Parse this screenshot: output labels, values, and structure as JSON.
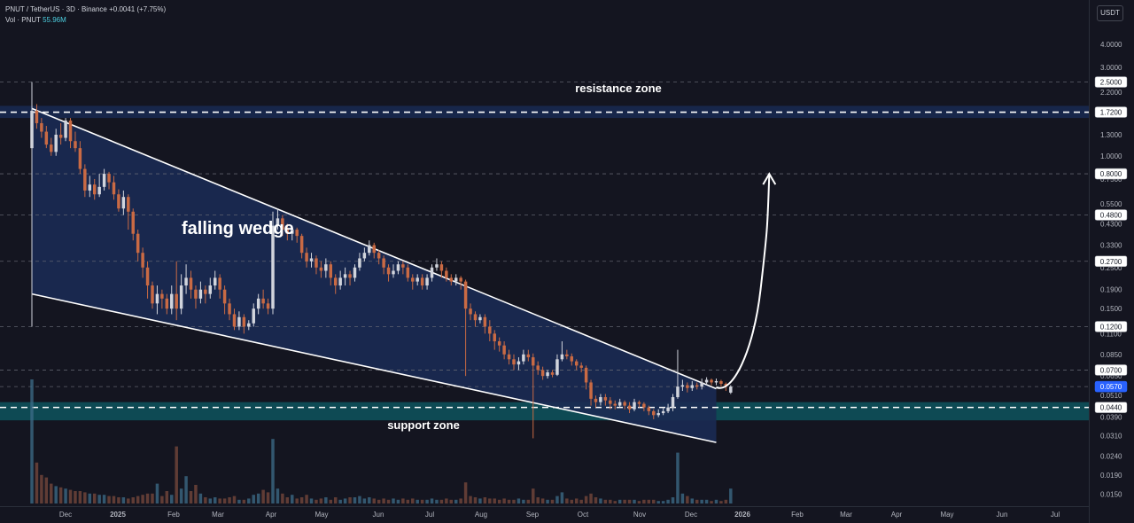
{
  "header": {
    "symbol_line": "PNUT / TetherUS · 3D · Binance",
    "change": "+0.0041 (+7.75%)",
    "vol_label": "Vol · PNUT",
    "vol_value": "55.96M",
    "currency": "USDT"
  },
  "chart_data": {
    "type": "candlestick",
    "symbol": "PNUT / TetherUS",
    "interval": "3D",
    "exchange": "Binance",
    "y_scale": "log",
    "ylim": [
      0.0135,
      6.2
    ],
    "x_ticks": [
      "Dec",
      "2025",
      "Feb",
      "Mar",
      "Apr",
      "May",
      "Jun",
      "Jul",
      "Aug",
      "Sep",
      "Oct",
      "Nov",
      "Dec",
      "2026",
      "Feb",
      "Mar",
      "Apr",
      "May",
      "Jun",
      "Jul"
    ],
    "y_ticks": [
      "4.0000",
      "3.0000",
      "2.2000",
      "1.3000",
      "1.0000",
      "0.7500",
      "0.5500",
      "0.4300",
      "0.3300",
      "0.2500",
      "0.1900",
      "0.1500",
      "0.1100",
      "0.0850",
      "0.0650",
      "0.0510",
      "0.0390",
      "0.0310",
      "0.0240",
      "0.0190",
      "0.0150"
    ],
    "price_labels": [
      "2.5000",
      "1.7200",
      "0.8000",
      "0.4800",
      "0.2700",
      "0.1200",
      "0.0700",
      "0.0570",
      "0.0440"
    ],
    "current_price": "0.0570",
    "annotations": {
      "resistance": "resistance zone",
      "pattern": "falling wedge",
      "support": "support zone"
    },
    "candles": [
      [
        1.1,
        1.75,
        2.5,
        0.12
      ],
      [
        1.75,
        1.5,
        1.9,
        1.4
      ],
      [
        1.5,
        1.35,
        1.6,
        1.25
      ],
      [
        1.35,
        1.15,
        1.45,
        1.1
      ],
      [
        1.15,
        1.05,
        1.25,
        1.0
      ],
      [
        1.05,
        1.3,
        1.4,
        1.0
      ],
      [
        1.3,
        1.25,
        1.5,
        1.15
      ],
      [
        1.25,
        1.55,
        1.6,
        1.2
      ],
      [
        1.55,
        1.2,
        1.6,
        1.1
      ],
      [
        1.2,
        1.1,
        1.35,
        1.05
      ],
      [
        1.1,
        0.85,
        1.2,
        0.8
      ],
      [
        0.85,
        0.65,
        0.9,
        0.6
      ],
      [
        0.65,
        0.7,
        0.78,
        0.6
      ],
      [
        0.7,
        0.62,
        0.75,
        0.58
      ],
      [
        0.62,
        0.68,
        0.8,
        0.6
      ],
      [
        0.68,
        0.8,
        0.85,
        0.65
      ],
      [
        0.8,
        0.72,
        0.82,
        0.66
      ],
      [
        0.72,
        0.62,
        0.78,
        0.58
      ],
      [
        0.62,
        0.52,
        0.66,
        0.5
      ],
      [
        0.52,
        0.6,
        0.65,
        0.48
      ],
      [
        0.6,
        0.5,
        0.62,
        0.4
      ],
      [
        0.5,
        0.38,
        0.52,
        0.35
      ],
      [
        0.38,
        0.3,
        0.4,
        0.27
      ],
      [
        0.3,
        0.25,
        0.32,
        0.22
      ],
      [
        0.25,
        0.2,
        0.27,
        0.17
      ],
      [
        0.2,
        0.16,
        0.21,
        0.15
      ],
      [
        0.16,
        0.18,
        0.2,
        0.14
      ],
      [
        0.18,
        0.17,
        0.19,
        0.15
      ],
      [
        0.17,
        0.15,
        0.18,
        0.14
      ],
      [
        0.15,
        0.18,
        0.2,
        0.14
      ],
      [
        0.18,
        0.15,
        0.27,
        0.13
      ],
      [
        0.15,
        0.2,
        0.23,
        0.14
      ],
      [
        0.2,
        0.22,
        0.26,
        0.18
      ],
      [
        0.22,
        0.19,
        0.24,
        0.17
      ],
      [
        0.19,
        0.17,
        0.2,
        0.15
      ],
      [
        0.17,
        0.19,
        0.21,
        0.16
      ],
      [
        0.19,
        0.18,
        0.2,
        0.16
      ],
      [
        0.18,
        0.2,
        0.22,
        0.17
      ],
      [
        0.2,
        0.22,
        0.24,
        0.19
      ],
      [
        0.22,
        0.19,
        0.23,
        0.17
      ],
      [
        0.19,
        0.16,
        0.2,
        0.14
      ],
      [
        0.16,
        0.14,
        0.17,
        0.13
      ],
      [
        0.14,
        0.12,
        0.15,
        0.115
      ],
      [
        0.12,
        0.135,
        0.145,
        0.115
      ],
      [
        0.135,
        0.12,
        0.14,
        0.11
      ],
      [
        0.12,
        0.125,
        0.13,
        0.115
      ],
      [
        0.125,
        0.15,
        0.16,
        0.12
      ],
      [
        0.15,
        0.17,
        0.18,
        0.14
      ],
      [
        0.17,
        0.16,
        0.19,
        0.15
      ],
      [
        0.16,
        0.15,
        0.17,
        0.14
      ],
      [
        0.15,
        0.42,
        0.5,
        0.14
      ],
      [
        0.42,
        0.46,
        0.52,
        0.4
      ],
      [
        0.46,
        0.4,
        0.48,
        0.37
      ],
      [
        0.4,
        0.38,
        0.43,
        0.35
      ],
      [
        0.38,
        0.4,
        0.42,
        0.35
      ],
      [
        0.4,
        0.37,
        0.41,
        0.34
      ],
      [
        0.37,
        0.3,
        0.38,
        0.28
      ],
      [
        0.3,
        0.27,
        0.32,
        0.25
      ],
      [
        0.27,
        0.28,
        0.3,
        0.25
      ],
      [
        0.28,
        0.25,
        0.29,
        0.23
      ],
      [
        0.25,
        0.24,
        0.27,
        0.22
      ],
      [
        0.24,
        0.26,
        0.28,
        0.22
      ],
      [
        0.26,
        0.22,
        0.27,
        0.2
      ],
      [
        0.22,
        0.2,
        0.23,
        0.18
      ],
      [
        0.2,
        0.22,
        0.24,
        0.19
      ],
      [
        0.22,
        0.23,
        0.25,
        0.2
      ],
      [
        0.23,
        0.22,
        0.24,
        0.2
      ],
      [
        0.22,
        0.25,
        0.26,
        0.21
      ],
      [
        0.25,
        0.28,
        0.3,
        0.24
      ],
      [
        0.28,
        0.3,
        0.32,
        0.27
      ],
      [
        0.3,
        0.33,
        0.35,
        0.29
      ],
      [
        0.33,
        0.3,
        0.34,
        0.28
      ],
      [
        0.3,
        0.28,
        0.31,
        0.26
      ],
      [
        0.28,
        0.25,
        0.29,
        0.23
      ],
      [
        0.25,
        0.23,
        0.26,
        0.21
      ],
      [
        0.23,
        0.24,
        0.26,
        0.22
      ],
      [
        0.24,
        0.26,
        0.27,
        0.23
      ],
      [
        0.26,
        0.25,
        0.27,
        0.23
      ],
      [
        0.25,
        0.22,
        0.26,
        0.21
      ],
      [
        0.22,
        0.21,
        0.23,
        0.19
      ],
      [
        0.21,
        0.22,
        0.23,
        0.2
      ],
      [
        0.22,
        0.2,
        0.23,
        0.19
      ],
      [
        0.2,
        0.22,
        0.23,
        0.19
      ],
      [
        0.22,
        0.25,
        0.26,
        0.21
      ],
      [
        0.25,
        0.26,
        0.28,
        0.24
      ],
      [
        0.26,
        0.24,
        0.27,
        0.22
      ],
      [
        0.24,
        0.22,
        0.25,
        0.21
      ],
      [
        0.22,
        0.21,
        0.23,
        0.2
      ],
      [
        0.21,
        0.22,
        0.23,
        0.2
      ],
      [
        0.22,
        0.21,
        0.225,
        0.19
      ],
      [
        0.21,
        0.15,
        0.215,
        0.065
      ],
      [
        0.15,
        0.14,
        0.16,
        0.13
      ],
      [
        0.14,
        0.13,
        0.145,
        0.12
      ],
      [
        0.13,
        0.135,
        0.14,
        0.125
      ],
      [
        0.135,
        0.12,
        0.14,
        0.11
      ],
      [
        0.12,
        0.11,
        0.13,
        0.1
      ],
      [
        0.11,
        0.1,
        0.115,
        0.09
      ],
      [
        0.1,
        0.095,
        0.105,
        0.088
      ],
      [
        0.095,
        0.085,
        0.1,
        0.08
      ],
      [
        0.085,
        0.08,
        0.09,
        0.075
      ],
      [
        0.08,
        0.075,
        0.085,
        0.07
      ],
      [
        0.075,
        0.078,
        0.082,
        0.07
      ],
      [
        0.078,
        0.085,
        0.09,
        0.075
      ],
      [
        0.085,
        0.082,
        0.09,
        0.078
      ],
      [
        0.082,
        0.074,
        0.086,
        0.03
      ],
      [
        0.074,
        0.07,
        0.078,
        0.066
      ],
      [
        0.07,
        0.065,
        0.073,
        0.062
      ],
      [
        0.065,
        0.068,
        0.07,
        0.063
      ],
      [
        0.068,
        0.066,
        0.07,
        0.064
      ],
      [
        0.066,
        0.08,
        0.085,
        0.065
      ],
      [
        0.08,
        0.085,
        0.1,
        0.078
      ],
      [
        0.085,
        0.083,
        0.09,
        0.08
      ],
      [
        0.083,
        0.078,
        0.086,
        0.074
      ],
      [
        0.078,
        0.074,
        0.08,
        0.07
      ],
      [
        0.074,
        0.072,
        0.077,
        0.068
      ],
      [
        0.072,
        0.06,
        0.074,
        0.055
      ],
      [
        0.06,
        0.049,
        0.062,
        0.045
      ],
      [
        0.049,
        0.047,
        0.051,
        0.044
      ],
      [
        0.047,
        0.05,
        0.052,
        0.045
      ],
      [
        0.05,
        0.048,
        0.052,
        0.045
      ],
      [
        0.048,
        0.046,
        0.05,
        0.043
      ],
      [
        0.046,
        0.045,
        0.048,
        0.043
      ],
      [
        0.045,
        0.047,
        0.049,
        0.044
      ],
      [
        0.047,
        0.045,
        0.048,
        0.043
      ],
      [
        0.045,
        0.043,
        0.047,
        0.041
      ],
      [
        0.043,
        0.047,
        0.049,
        0.042
      ],
      [
        0.047,
        0.046,
        0.048,
        0.044
      ],
      [
        0.046,
        0.044,
        0.047,
        0.042
      ],
      [
        0.044,
        0.042,
        0.045,
        0.04
      ],
      [
        0.042,
        0.04,
        0.043,
        0.038
      ],
      [
        0.04,
        0.041,
        0.043,
        0.039
      ],
      [
        0.041,
        0.042,
        0.044,
        0.04
      ],
      [
        0.042,
        0.044,
        0.046,
        0.041
      ],
      [
        0.044,
        0.05,
        0.052,
        0.042
      ],
      [
        0.05,
        0.057,
        0.09,
        0.049
      ],
      [
        0.057,
        0.058,
        0.062,
        0.054
      ],
      [
        0.058,
        0.056,
        0.06,
        0.053
      ],
      [
        0.056,
        0.058,
        0.061,
        0.054
      ],
      [
        0.058,
        0.057,
        0.06,
        0.055
      ],
      [
        0.057,
        0.06,
        0.063,
        0.055
      ],
      [
        0.06,
        0.062,
        0.064,
        0.058
      ],
      [
        0.062,
        0.06,
        0.063,
        0.058
      ],
      [
        0.06,
        0.061,
        0.063,
        0.058
      ],
      [
        0.061,
        0.059,
        0.062,
        0.057
      ],
      [
        0.059,
        0.057,
        0.06,
        0.054
      ],
      [
        0.0529,
        0.057,
        0.058,
        0.052
      ]
    ],
    "volumes": [
      1.0,
      0.33,
      0.23,
      0.21,
      0.16,
      0.14,
      0.13,
      0.12,
      0.11,
      0.1,
      0.1,
      0.09,
      0.08,
      0.08,
      0.07,
      0.07,
      0.06,
      0.06,
      0.05,
      0.05,
      0.04,
      0.05,
      0.06,
      0.07,
      0.08,
      0.08,
      0.16,
      0.06,
      0.1,
      0.07,
      0.46,
      0.12,
      0.22,
      0.1,
      0.15,
      0.08,
      0.05,
      0.04,
      0.05,
      0.04,
      0.04,
      0.05,
      0.06,
      0.03,
      0.03,
      0.04,
      0.07,
      0.08,
      0.11,
      0.09,
      0.52,
      0.12,
      0.08,
      0.05,
      0.07,
      0.04,
      0.05,
      0.07,
      0.04,
      0.03,
      0.04,
      0.05,
      0.03,
      0.05,
      0.03,
      0.04,
      0.05,
      0.05,
      0.06,
      0.04,
      0.05,
      0.04,
      0.03,
      0.04,
      0.03,
      0.04,
      0.03,
      0.04,
      0.03,
      0.04,
      0.03,
      0.03,
      0.03,
      0.04,
      0.03,
      0.03,
      0.04,
      0.03,
      0.03,
      0.04,
      0.17,
      0.06,
      0.05,
      0.04,
      0.05,
      0.04,
      0.04,
      0.03,
      0.04,
      0.03,
      0.03,
      0.04,
      0.03,
      0.03,
      0.12,
      0.05,
      0.04,
      0.03,
      0.03,
      0.06,
      0.09,
      0.04,
      0.03,
      0.04,
      0.03,
      0.06,
      0.08,
      0.05,
      0.04,
      0.03,
      0.03,
      0.02,
      0.03,
      0.03,
      0.03,
      0.03,
      0.02,
      0.03,
      0.03,
      0.03,
      0.02,
      0.02,
      0.03,
      0.05,
      0.41,
      0.08,
      0.06,
      0.04,
      0.03,
      0.03,
      0.03,
      0.02,
      0.03,
      0.02,
      0.03,
      0.12
    ],
    "wedge": {
      "upper_line": [
        [
          0,
          1.8
        ],
        [
          142,
          0.0555
        ]
      ],
      "lower_line": [
        [
          0,
          0.18
        ],
        [
          142,
          0.0285
        ]
      ]
    },
    "projection_arrow": {
      "from": [
        142,
        0.0565
      ],
      "to": [
        153,
        0.8
      ]
    }
  },
  "colors": {
    "up": "#d1d4dc",
    "down": "#c96a44",
    "wedge_fill": "#1a2a52",
    "zone_resistance": "#17264a",
    "zone_support": "#0e4a54",
    "accent": "#2962ff"
  }
}
